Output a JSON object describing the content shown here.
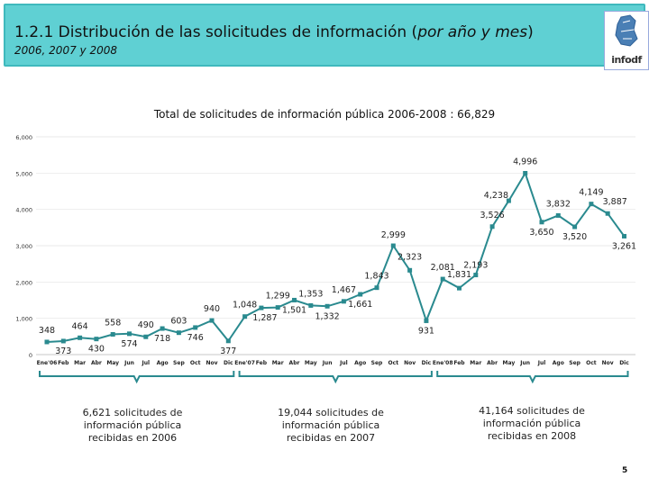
{
  "header": {
    "title_main": "1.2.1 Distribución de las solicitudes de información (",
    "title_italic": "por año y mes",
    "title_end": ")",
    "subtitle": "2006, 2007 y 2008",
    "logo_text": "infodf"
  },
  "chart_data": {
    "type": "line",
    "title": "Total de solicitudes de información pública 2006-2008 : 66,829",
    "ylim": [
      0,
      6000
    ],
    "yticks": [
      "0",
      "1,000",
      "2,000",
      "3,000",
      "4,000",
      "5,000",
      "6,000"
    ],
    "categories": [
      "Ene'06",
      "Feb",
      "Mar",
      "Abr",
      "May",
      "Jun",
      "Jul",
      "Ago",
      "Sep",
      "Oct",
      "Nov",
      "Dic",
      "Ene'07",
      "Feb",
      "Mar",
      "Abr",
      "May",
      "Jun",
      "Jul",
      "Ago",
      "Sep",
      "Oct",
      "Nov",
      "Dic",
      "Ene'08",
      "Feb",
      "Mar",
      "Abr",
      "May",
      "Jun",
      "Jul",
      "Ago",
      "Sep",
      "Oct",
      "Nov",
      "Dic"
    ],
    "values": [
      348,
      373,
      464,
      430,
      558,
      574,
      490,
      718,
      603,
      746,
      940,
      377,
      1048,
      1287,
      1299,
      1501,
      1353,
      1332,
      1467,
      1661,
      1843,
      2999,
      2323,
      931,
      2081,
      1831,
      2193,
      3526,
      4238,
      4996,
      3650,
      3832,
      3520,
      4149,
      3887,
      3261
    ],
    "labels": [
      "348",
      "373",
      "464",
      "430",
      "558",
      "574",
      "490",
      "718",
      "603",
      "746",
      "940",
      "377",
      "1,048",
      "1,287",
      "1,299",
      "1,501",
      "1,353",
      "1,332",
      "1,467",
      "1,661",
      "1,843",
      "2,999",
      "2,323",
      "931",
      "2,081",
      "1,831",
      "2,193",
      "3,526",
      "4,238",
      "4,996",
      "3,650",
      "3,832",
      "3,520",
      "4,149",
      "3,887",
      "3,261"
    ],
    "color": "#2a8a8f"
  },
  "summaries": [
    "6,621 solicitudes de información pública recibidas en 2006",
    "19,044 solicitudes de información pública recibidas en 2007",
    "41,164 solicitudes de información pública recibidas en 2008"
  ],
  "page_number": "5"
}
